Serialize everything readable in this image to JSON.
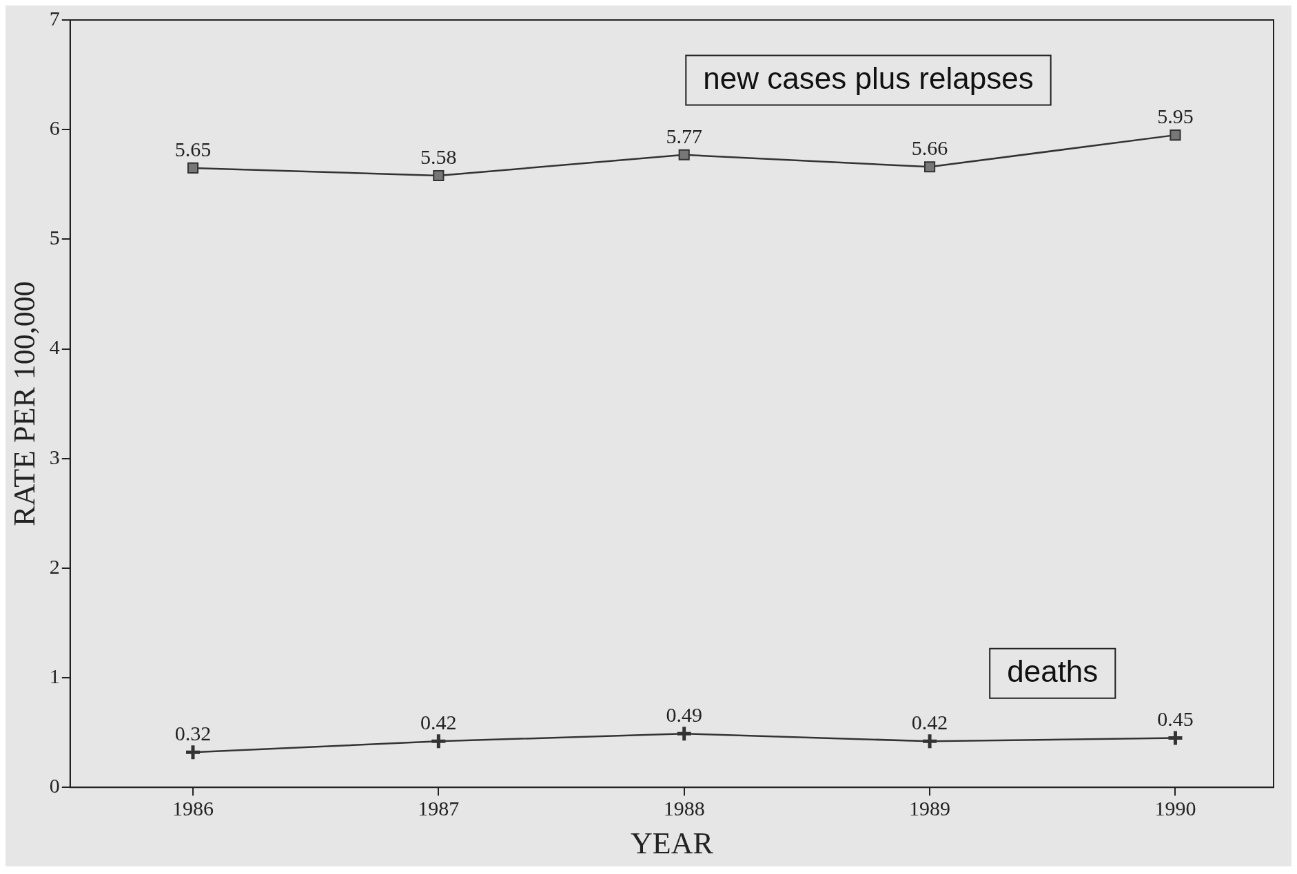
{
  "chart_data": {
    "type": "line",
    "xlabel": "YEAR",
    "ylabel": "RATE PER 100,000",
    "x": [
      1986,
      1987,
      1988,
      1989,
      1990
    ],
    "series": [
      {
        "name": "new cases plus relapses",
        "color": "#333333",
        "marker": "square",
        "values": [
          5.65,
          5.58,
          5.77,
          5.66,
          5.95
        ]
      },
      {
        "name": "deaths",
        "color": "#333333",
        "marker": "cross",
        "values": [
          0.32,
          0.42,
          0.49,
          0.42,
          0.45
        ]
      }
    ],
    "xlim": [
      1985.5,
      1990.4
    ],
    "xticks": [
      1986,
      1987,
      1988,
      1989,
      1990
    ],
    "ylim": [
      0,
      7
    ],
    "yticks": [
      0,
      1,
      2,
      3,
      4,
      5,
      6,
      7
    ],
    "data_labels": true,
    "grid": false,
    "legend": false,
    "line_style": "solid"
  }
}
